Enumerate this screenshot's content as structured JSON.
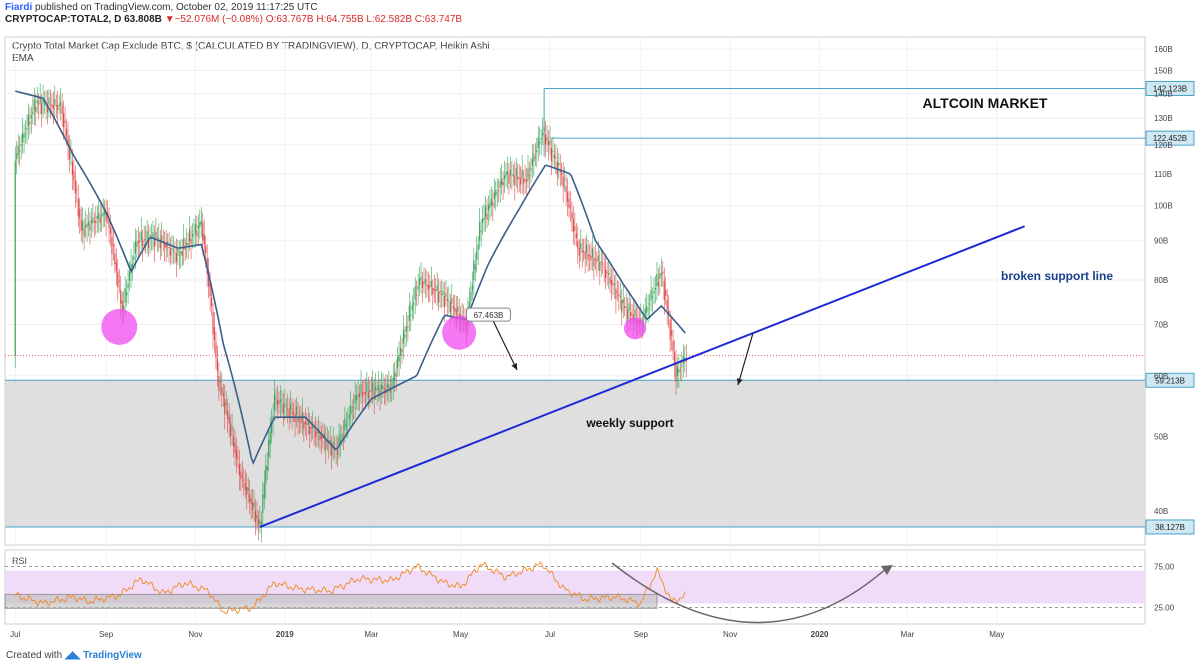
{
  "header": {
    "author": "Fiardi",
    "published": "published on TradingView.com, October 02, 2019 11:17:25 UTC",
    "symbol": "CRYPTOCAP:TOTAL2, D",
    "last": "63.808B",
    "change_arrow": "▼",
    "change": "−52.076M (−0.08%)",
    "o": "O:63.767B",
    "h": "H:64.755B",
    "l": "L:62.582B",
    "c": "C:63.747B"
  },
  "footer": {
    "created_with": "Created with",
    "brand": "TradingView"
  },
  "colors": {
    "up": "#3aa55a",
    "down": "#e0484b",
    "ema": "#3b5f8a",
    "trendline": "#1f2ad6",
    "support_zone": "#d9d9d9",
    "rsi_band": "#f0dcf8",
    "rsi_line": "#f08a24",
    "highlight": "#f04bf0"
  },
  "chart_data": [
    {
      "type": "candlestick",
      "title": "Crypto Total Market Cap Exclude BTC, $ (CALCULATED BY TRADINGVIEW), D, CRYPTOCAP, Heikin Ashi",
      "indicator_label": "EMA",
      "y_scale": "log",
      "ylim": [
        35,
        165
      ],
      "y_ticks": [
        "40B",
        "50B",
        "60B",
        "70B",
        "80B",
        "90B",
        "100B",
        "110B",
        "120B",
        "130B",
        "140B",
        "150B",
        "160B"
      ],
      "x_ticks": [
        "Jul",
        "Sep",
        "Nov",
        "2019",
        "Mar",
        "May",
        "Jul",
        "Sep",
        "Nov",
        "2020",
        "Mar",
        "May"
      ],
      "price_series_knots": [
        [
          "2018-07-01",
          115
        ],
        [
          "2018-07-15",
          136
        ],
        [
          "2018-08-01",
          135
        ],
        [
          "2018-08-15",
          93
        ],
        [
          "2018-09-01",
          98
        ],
        [
          "2018-09-12",
          73
        ],
        [
          "2018-09-22",
          90
        ],
        [
          "2018-10-05",
          91
        ],
        [
          "2018-10-20",
          86
        ],
        [
          "2018-11-05",
          95
        ],
        [
          "2018-11-16",
          60
        ],
        [
          "2018-12-01",
          45
        ],
        [
          "2018-12-15",
          38
        ],
        [
          "2018-12-25",
          56
        ],
        [
          "2019-01-15",
          52
        ],
        [
          "2019-02-05",
          48
        ],
        [
          "2019-02-20",
          57
        ],
        [
          "2019-03-15",
          58
        ],
        [
          "2019-04-03",
          80
        ],
        [
          "2019-04-20",
          76
        ],
        [
          "2019-05-05",
          70
        ],
        [
          "2019-05-15",
          95
        ],
        [
          "2019-06-01",
          110
        ],
        [
          "2019-06-15",
          108
        ],
        [
          "2019-06-26",
          125
        ],
        [
          "2019-07-10",
          108
        ],
        [
          "2019-07-20",
          88
        ],
        [
          "2019-08-05",
          84
        ],
        [
          "2019-08-20",
          74
        ],
        [
          "2019-09-01",
          70
        ],
        [
          "2019-09-15",
          82
        ],
        [
          "2019-09-25",
          60
        ],
        [
          "2019-10-02",
          63.8
        ]
      ],
      "ema_knots": [
        [
          "2018-07-01",
          141
        ],
        [
          "2018-07-20",
          138
        ],
        [
          "2018-08-10",
          116
        ],
        [
          "2018-09-01",
          98
        ],
        [
          "2018-09-18",
          82
        ],
        [
          "2018-10-01",
          91
        ],
        [
          "2018-10-20",
          88
        ],
        [
          "2018-11-05",
          89
        ],
        [
          "2018-11-20",
          66
        ],
        [
          "2018-12-10",
          46
        ],
        [
          "2018-12-25",
          53
        ],
        [
          "2019-01-15",
          53
        ],
        [
          "2019-02-05",
          48
        ],
        [
          "2019-03-01",
          56
        ],
        [
          "2019-04-01",
          60
        ],
        [
          "2019-04-20",
          72
        ],
        [
          "2019-05-05",
          71
        ],
        [
          "2019-05-20",
          84
        ],
        [
          "2019-06-10",
          99
        ],
        [
          "2019-06-28",
          113
        ],
        [
          "2019-07-15",
          110
        ],
        [
          "2019-08-01",
          90
        ],
        [
          "2019-08-20",
          79
        ],
        [
          "2019-09-05",
          71
        ],
        [
          "2019-09-15",
          74
        ],
        [
          "2019-10-02",
          68
        ]
      ],
      "price_labels": [
        "142.123B",
        "122.452B",
        "59.213B",
        "38.127B"
      ],
      "horizontal_lines": [
        142.123,
        122.452,
        59.213,
        38.127
      ],
      "current_price_line": 63.8,
      "support_zone": [
        38.127,
        59.213
      ],
      "trendline": {
        "from": [
          "2018-12-15",
          38.127
        ],
        "to": [
          "2020-05-20",
          94
        ]
      },
      "measure_label": "67.463B",
      "annotations": [
        "ALTCOIN MARKET",
        "broken support line",
        "weekly support"
      ],
      "highlight_circles": [
        [
          "2018-09-10",
          69.5
        ],
        [
          "2019-04-30",
          68.3
        ],
        [
          "2019-08-28",
          69.2
        ]
      ]
    },
    {
      "type": "line",
      "title": "RSI",
      "ylim": [
        5,
        95
      ],
      "band": [
        30,
        70
      ],
      "levels": [
        25,
        75
      ],
      "y_ticks": [
        "25.00",
        "75.00"
      ],
      "rsi_knots": [
        [
          "2018-07-01",
          40
        ],
        [
          "2018-07-20",
          30
        ],
        [
          "2018-08-10",
          38
        ],
        [
          "2018-08-20",
          32
        ],
        [
          "2018-09-10",
          40
        ],
        [
          "2018-09-25",
          60
        ],
        [
          "2018-10-10",
          42
        ],
        [
          "2018-10-25",
          55
        ],
        [
          "2018-11-10",
          45
        ],
        [
          "2018-11-20",
          20
        ],
        [
          "2018-12-10",
          25
        ],
        [
          "2018-12-25",
          55
        ],
        [
          "2019-01-10",
          48
        ],
        [
          "2019-02-01",
          45
        ],
        [
          "2019-02-20",
          60
        ],
        [
          "2019-03-15",
          58
        ],
        [
          "2019-04-01",
          75
        ],
        [
          "2019-04-20",
          55
        ],
        [
          "2019-05-01",
          50
        ],
        [
          "2019-05-15",
          78
        ],
        [
          "2019-06-01",
          62
        ],
        [
          "2019-06-26",
          78
        ],
        [
          "2019-07-10",
          48
        ],
        [
          "2019-07-25",
          35
        ],
        [
          "2019-08-15",
          38
        ],
        [
          "2019-09-01",
          30
        ],
        [
          "2019-09-12",
          70
        ],
        [
          "2019-09-22",
          32
        ],
        [
          "2019-10-02",
          40
        ]
      ]
    }
  ]
}
